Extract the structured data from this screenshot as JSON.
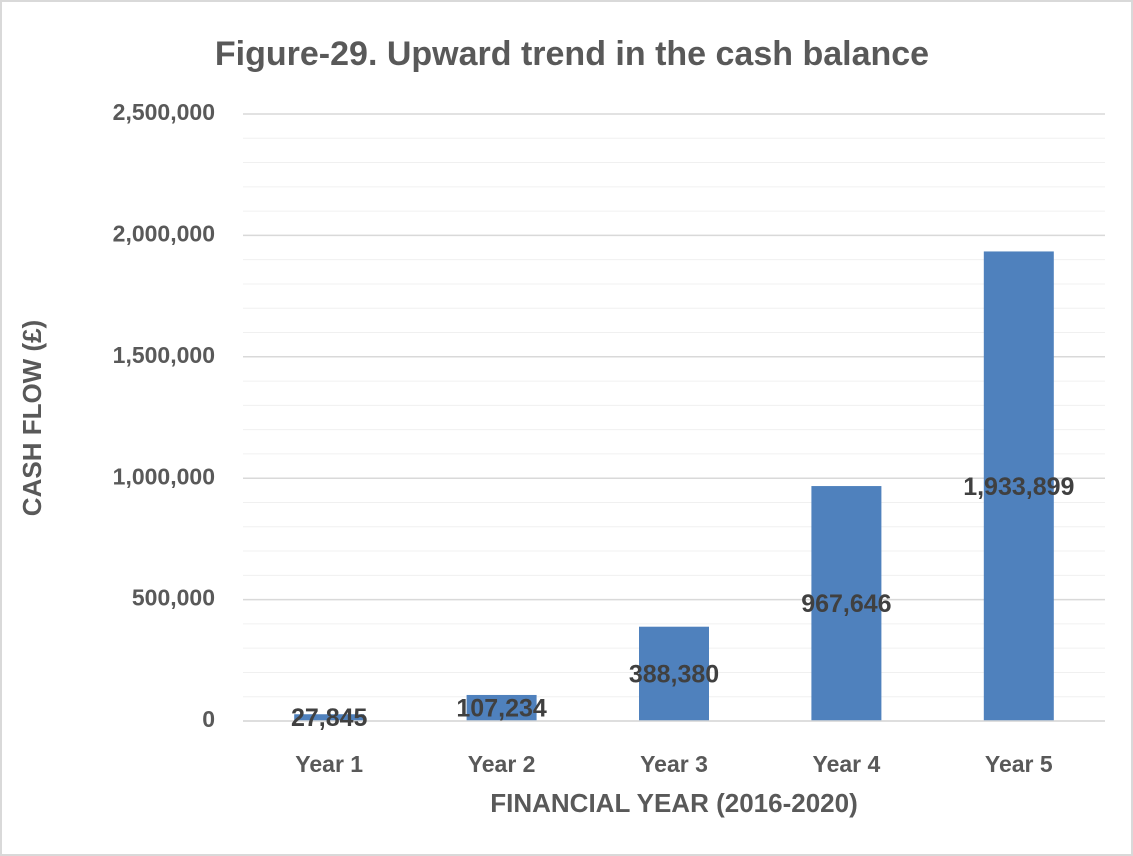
{
  "chart_data": {
    "type": "bar",
    "title": "Figure-29. Upward trend in the cash balance",
    "x_label": "FINANCIAL YEAR (2016-2020)",
    "y_label": "CASH  FLOW (£)",
    "categories": [
      "Year 1",
      "Year 2",
      "Year 3",
      "Year 4",
      "Year 5"
    ],
    "values": [
      27845,
      107234,
      388380,
      967646,
      1933899
    ],
    "value_labels": [
      "27,845",
      "107,234",
      "388,380",
      "967,646",
      "1,933,899"
    ],
    "color": "#4f81bd",
    "ylim": [
      0,
      2500000
    ],
    "yticks": [
      0,
      {
        "value": 500000,
        "label": "500,000"
      },
      {
        "value": 1000000,
        "label": "1,000,000"
      },
      {
        "value": 1500000,
        "label": "1,500,000"
      },
      {
        "value": 2000000,
        "label": "2,000,000"
      },
      {
        "value": 2500000,
        "label": "2,500,000"
      }
    ],
    "minor_yticks": [
      100000,
      200000,
      300000,
      400000,
      600000,
      700000,
      800000,
      900000,
      1100000,
      1200000,
      1300000,
      1400000,
      1600000,
      1700000,
      1800000,
      1900000,
      2100000,
      2200000,
      2300000,
      2400000
    ],
    "grid": true
  }
}
